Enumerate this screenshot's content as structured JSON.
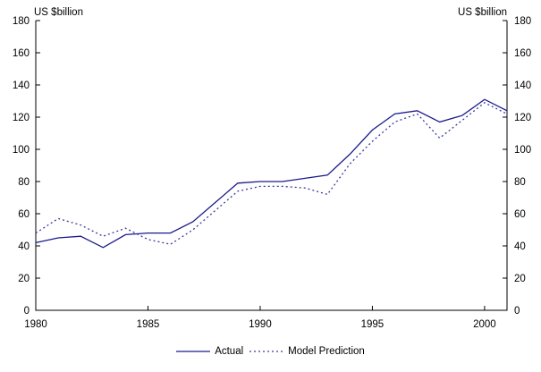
{
  "chart_data": {
    "type": "line",
    "title_left": "US $billion",
    "title_right": "US $billion",
    "x": [
      1980,
      1981,
      1982,
      1983,
      1984,
      1985,
      1986,
      1987,
      1988,
      1989,
      1990,
      1991,
      1992,
      1993,
      1994,
      1995,
      1996,
      1997,
      1998,
      1999,
      2000,
      2001
    ],
    "series": [
      {
        "name": "Actual",
        "style": "solid",
        "color": "#1a1a8c",
        "values": [
          42,
          45,
          46,
          39,
          47,
          48,
          48,
          55,
          67,
          79,
          80,
          80,
          82,
          84,
          97,
          112,
          122,
          124,
          117,
          121,
          131,
          124
        ]
      },
      {
        "name": "Model Prediction",
        "style": "dotted",
        "color": "#3a3a9c",
        "values": [
          48,
          57,
          53,
          46,
          51,
          44,
          41,
          50,
          62,
          74,
          77,
          77,
          76,
          72,
          91,
          105,
          117,
          122,
          107,
          118,
          129,
          122
        ]
      }
    ],
    "xlim": [
      1980,
      2001
    ],
    "ylim": [
      0,
      180
    ],
    "x_tick_labels": [
      1980,
      1985,
      1990,
      1995,
      2000
    ],
    "y_ticks": [
      0,
      20,
      40,
      60,
      80,
      100,
      120,
      140,
      160,
      180
    ],
    "grid": false,
    "legend_position": "bottom-center",
    "axis_color": "#000000"
  }
}
